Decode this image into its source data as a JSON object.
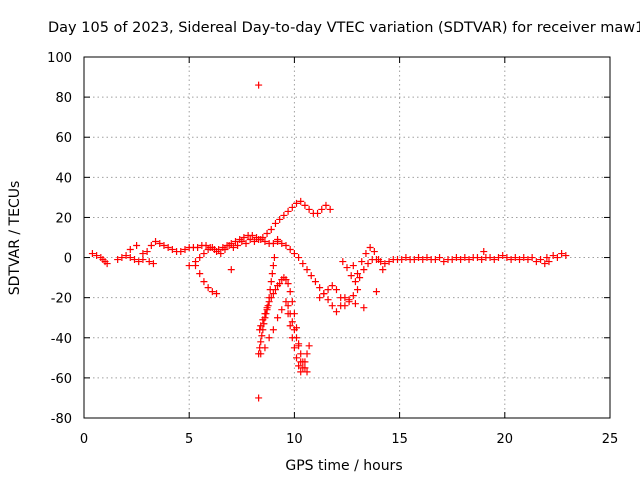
{
  "chart_data": {
    "type": "scatter",
    "title": "Day 105 of 2023, Sidereal Day-to-day VTEC variation (SDTVAR) for receiver maw1",
    "xlabel": "GPS time / hours",
    "ylabel": "SDTVAR / TECUs",
    "xlim": [
      0,
      25
    ],
    "ylim": [
      -80,
      100
    ],
    "xticks": [
      0,
      5,
      10,
      15,
      20,
      25
    ],
    "yticks": [
      -80,
      -60,
      -40,
      -20,
      0,
      20,
      40,
      60,
      80,
      100
    ],
    "grid": true,
    "marker": "+",
    "color": "#ff0000",
    "series": [
      {
        "name": "SDTVAR",
        "x": [
          0.4,
          0.6,
          0.8,
          0.9,
          1.0,
          1.1,
          1.6,
          1.8,
          2.0,
          2.2,
          2.4,
          2.6,
          2.8,
          3.0,
          3.2,
          3.4,
          3.6,
          3.8,
          4.0,
          4.2,
          4.4,
          4.6,
          4.8,
          5.0,
          5.2,
          5.4,
          5.6,
          5.8,
          6.0,
          6.2,
          6.4,
          6.6,
          6.8,
          7.0,
          7.2,
          7.4,
          7.6,
          7.8,
          8.0,
          8.2,
          8.4,
          8.6,
          8.8,
          9.0,
          9.2,
          2.2,
          2.5,
          2.8,
          3.1,
          3.3,
          5.0,
          5.3,
          5.5,
          5.7,
          5.9,
          6.1,
          6.3,
          6.5,
          6.7,
          6.9,
          7.1,
          7.3,
          7.5,
          7.7,
          7.9,
          8.1,
          8.3,
          8.5,
          8.7,
          8.9,
          9.1,
          9.3,
          9.5,
          9.7,
          9.9,
          10.1,
          10.3,
          10.5,
          10.7,
          10.9,
          11.1,
          11.3,
          11.5,
          11.7,
          9.2,
          9.4,
          9.6,
          9.8,
          10.0,
          10.2,
          10.4,
          10.6,
          10.8,
          11.0,
          11.2,
          11.4,
          11.6,
          11.8,
          12.0,
          12.2,
          12.4,
          8.3,
          8.35,
          8.4,
          8.45,
          8.5,
          8.55,
          8.6,
          8.65,
          8.7,
          8.75,
          8.8,
          8.85,
          8.9,
          8.95,
          9.0,
          9.05,
          8.35,
          8.4,
          8.5,
          8.6,
          8.7,
          8.8,
          8.9,
          9.0,
          9.1,
          9.2,
          9.3,
          9.4,
          9.5,
          9.6,
          9.7,
          9.8,
          9.9,
          10.0,
          10.1,
          10.2,
          10.3,
          8.4,
          8.6,
          8.8,
          9.0,
          9.2,
          9.4,
          9.6,
          9.7,
          9.8,
          9.9,
          10.0,
          10.1,
          10.2,
          10.3,
          10.4,
          10.5,
          10.6,
          10.7,
          9.7,
          9.8,
          9.9,
          10.0,
          10.1,
          10.2,
          10.3,
          10.4,
          10.5,
          10.6,
          5.3,
          5.5,
          5.7,
          5.9,
          6.1,
          6.3,
          7.0,
          8.3,
          11.2,
          11.4,
          11.6,
          11.8,
          12.0,
          12.2,
          12.4,
          12.6,
          12.8,
          13.0,
          12.3,
          12.5,
          12.7,
          12.9,
          13.1,
          13.3,
          13.5,
          13.7,
          13.9,
          14.1,
          14.3,
          14.5,
          14.7,
          14.9,
          15.1,
          15.3,
          15.5,
          15.7,
          15.9,
          16.1,
          16.3,
          16.5,
          16.7,
          16.9,
          17.1,
          17.3,
          17.5,
          17.7,
          17.9,
          18.1,
          18.3,
          18.5,
          18.7,
          18.9,
          19.1,
          19.3,
          19.5,
          19.7,
          19.9,
          20.1,
          20.3,
          20.5,
          20.7,
          20.9,
          21.1,
          21.3,
          21.5,
          21.7,
          21.9,
          22.1,
          22.3,
          22.5,
          22.7,
          22.9,
          19.0,
          22.0,
          12.8,
          13.0,
          13.2,
          13.4,
          13.6,
          13.8,
          14.0,
          14.2,
          12.6,
          12.9,
          13.3,
          13.9,
          8.3
        ],
        "y": [
          2,
          1,
          0,
          -1,
          -2,
          -3,
          -1,
          0,
          1,
          0,
          -1,
          -2,
          -1,
          3,
          6,
          8,
          7,
          6,
          5,
          4,
          3,
          3,
          4,
          5,
          5,
          5,
          6,
          6,
          5,
          4,
          4,
          5,
          6,
          7,
          8,
          9,
          10,
          11,
          11,
          10,
          9,
          8,
          7,
          7,
          9,
          4,
          6,
          2,
          -2,
          -3,
          -4,
          -2,
          0,
          2,
          4,
          5,
          3,
          2,
          4,
          6,
          5,
          6,
          8,
          7,
          9,
          8,
          9,
          10,
          12,
          14,
          17,
          19,
          21,
          23,
          25,
          27,
          28,
          26,
          24,
          22,
          22,
          24,
          26,
          24,
          8,
          7,
          6,
          4,
          2,
          0,
          -3,
          -6,
          -9,
          -12,
          -15,
          -18,
          -21,
          -24,
          -27,
          -24,
          -20,
          -48,
          -45,
          -42,
          -39,
          -36,
          -33,
          -30,
          -28,
          -26,
          -24,
          -20,
          -16,
          -12,
          -8,
          -4,
          0,
          -36,
          -34,
          -31,
          -28,
          -25,
          -22,
          -20,
          -18,
          -16,
          -14,
          -13,
          -11,
          -10,
          -11,
          -13,
          -17,
          -22,
          -28,
          -35,
          -43,
          -52,
          -48,
          -45,
          -40,
          -36,
          -30,
          -26,
          -22,
          -28,
          -34,
          -40,
          -45,
          -50,
          -54,
          -57,
          -55,
          -52,
          -48,
          -44,
          -24,
          -28,
          -32,
          -36,
          -40,
          -44,
          -48,
          -52,
          -55,
          -57,
          -4,
          -8,
          -12,
          -15,
          -17,
          -18,
          -6,
          -70,
          -20,
          -18,
          -16,
          -14,
          -16,
          -20,
          -24,
          -22,
          -19,
          -16,
          -2,
          -5,
          -9,
          -12,
          -10,
          -6,
          -3,
          -1,
          -1,
          -2,
          -3,
          -2,
          -1,
          -1,
          -1,
          0,
          -1,
          -1,
          0,
          -1,
          0,
          -1,
          -1,
          0,
          -2,
          -1,
          -1,
          0,
          -1,
          0,
          -1,
          0,
          0,
          -1,
          0,
          0,
          -1,
          0,
          1,
          0,
          -1,
          0,
          -1,
          0,
          -1,
          0,
          -2,
          -1,
          -3,
          -2,
          1,
          0,
          2,
          1,
          3,
          0,
          -4,
          -8,
          -2,
          2,
          5,
          3,
          -1,
          -6,
          -21,
          -23,
          -25,
          -17,
          86
        ]
      }
    ]
  }
}
